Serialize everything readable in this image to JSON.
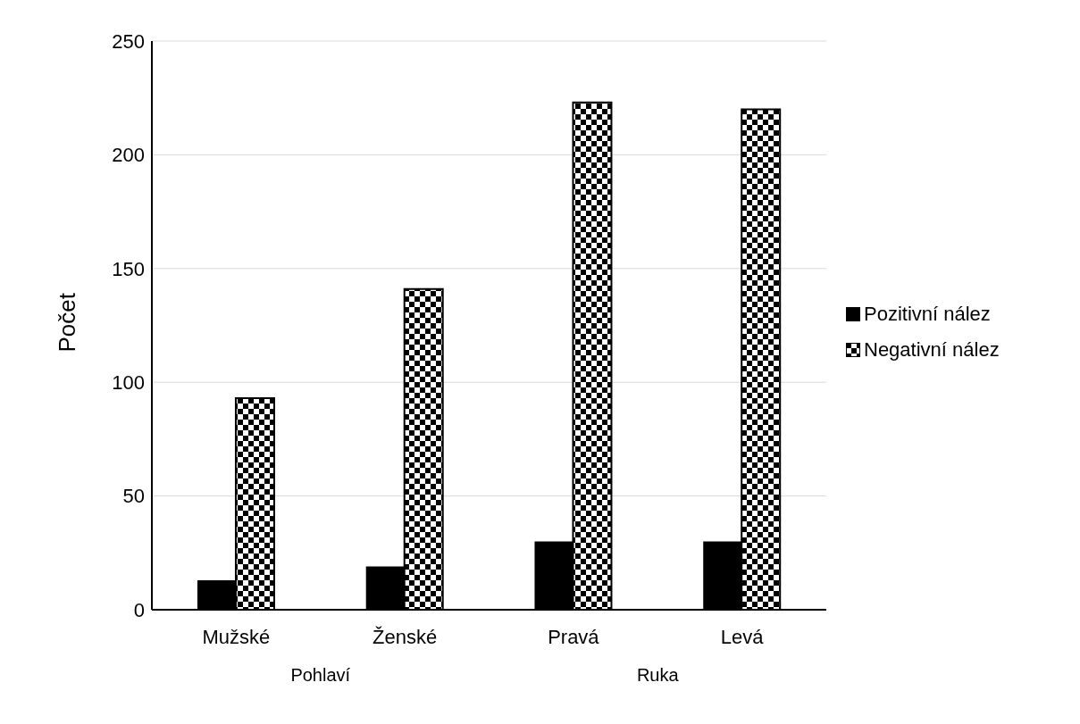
{
  "chart_data": {
    "type": "bar",
    "ylabel": "Počet",
    "categories": [
      "Mužské",
      "Ženské",
      "Pravá",
      "Levá"
    ],
    "series": [
      {
        "name": "Pozitivní nález",
        "color": "#000000",
        "values": [
          13,
          19,
          30,
          30
        ]
      },
      {
        "name": "Negativní nález",
        "color": "#000000",
        "values": [
          93,
          141,
          223,
          220
        ]
      }
    ],
    "ylim": [
      0,
      250
    ],
    "yticks": [
      0,
      50,
      100,
      150,
      200,
      250
    ],
    "grid": "y",
    "legend": "right",
    "annotations": [
      "Pohlaví",
      "Ruka"
    ]
  }
}
